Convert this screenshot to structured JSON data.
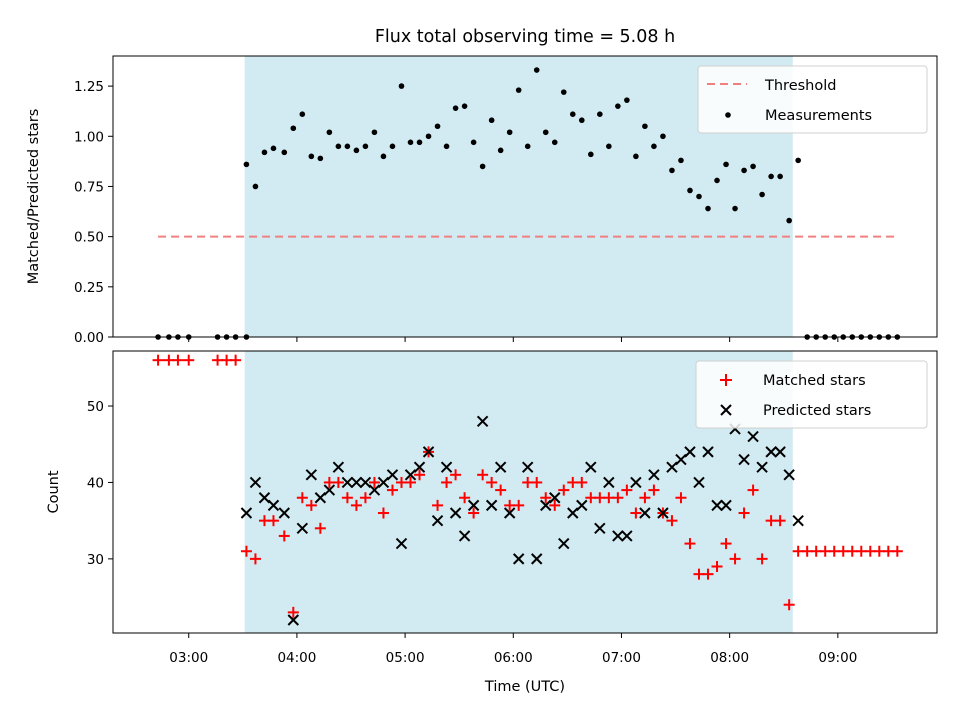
{
  "chart_data": [
    {
      "type": "scatter",
      "title": "Flux total observing time = 5.08 h",
      "xlabel": "",
      "ylabel": "Matched/Predicted stars",
      "ylim": [
        0,
        1.4
      ],
      "yticks": [
        "0.00",
        "0.25",
        "0.50",
        "0.75",
        "1.00",
        "1.25"
      ],
      "ytick_values": [
        0,
        0.25,
        0.5,
        0.75,
        1.0,
        1.25
      ],
      "shaded_span": {
        "start": "03:31",
        "end": "08:35",
        "color": "#add8e6"
      },
      "threshold": {
        "name": "Threshold",
        "value": 0.5,
        "x_start": "02:43",
        "x_end": "09:32",
        "color": "#f08080"
      },
      "legend": [
        "Threshold",
        "Measurements"
      ],
      "legend_position": "top-right",
      "series": [
        {
          "name": "Measurements",
          "color": "#000000",
          "points": [
            [
              "02:43",
              0.0
            ],
            [
              "02:49",
              0.0
            ],
            [
              "02:54",
              0.0
            ],
            [
              "03:00",
              0.0
            ],
            [
              "03:16",
              0.0
            ],
            [
              "03:21",
              0.0
            ],
            [
              "03:26",
              0.0
            ],
            [
              "03:32",
              0.0
            ],
            [
              "03:32",
              0.86
            ],
            [
              "03:37",
              0.75
            ],
            [
              "03:42",
              0.92
            ],
            [
              "03:47",
              0.94
            ],
            [
              "03:53",
              0.92
            ],
            [
              "03:58",
              1.04
            ],
            [
              "04:03",
              1.11
            ],
            [
              "04:08",
              0.9
            ],
            [
              "04:13",
              0.89
            ],
            [
              "04:18",
              1.02
            ],
            [
              "04:23",
              0.95
            ],
            [
              "04:28",
              0.95
            ],
            [
              "04:33",
              0.93
            ],
            [
              "04:38",
              0.95
            ],
            [
              "04:43",
              1.02
            ],
            [
              "04:48",
              0.9
            ],
            [
              "04:53",
              0.95
            ],
            [
              "04:58",
              1.25
            ],
            [
              "05:03",
              0.97
            ],
            [
              "05:08",
              0.97
            ],
            [
              "05:13",
              1.0
            ],
            [
              "05:18",
              1.05
            ],
            [
              "05:23",
              0.95
            ],
            [
              "05:28",
              1.14
            ],
            [
              "05:33",
              1.15
            ],
            [
              "05:38",
              0.97
            ],
            [
              "05:43",
              0.85
            ],
            [
              "05:48",
              1.08
            ],
            [
              "05:53",
              0.93
            ],
            [
              "05:58",
              1.02
            ],
            [
              "06:03",
              1.23
            ],
            [
              "06:08",
              0.95
            ],
            [
              "06:13",
              1.33
            ],
            [
              "06:18",
              1.02
            ],
            [
              "06:23",
              0.97
            ],
            [
              "06:28",
              1.22
            ],
            [
              "06:33",
              1.11
            ],
            [
              "06:38",
              1.08
            ],
            [
              "06:43",
              0.91
            ],
            [
              "06:48",
              1.11
            ],
            [
              "06:53",
              0.95
            ],
            [
              "06:58",
              1.15
            ],
            [
              "07:03",
              1.18
            ],
            [
              "07:08",
              0.9
            ],
            [
              "07:13",
              1.05
            ],
            [
              "07:18",
              0.95
            ],
            [
              "07:23",
              1.0
            ],
            [
              "07:28",
              0.83
            ],
            [
              "07:33",
              0.88
            ],
            [
              "07:38",
              0.73
            ],
            [
              "07:43",
              0.7
            ],
            [
              "07:48",
              0.64
            ],
            [
              "07:53",
              0.78
            ],
            [
              "07:58",
              0.86
            ],
            [
              "08:03",
              0.64
            ],
            [
              "08:08",
              0.83
            ],
            [
              "08:13",
              0.85
            ],
            [
              "08:18",
              0.71
            ],
            [
              "08:23",
              0.8
            ],
            [
              "08:28",
              0.8
            ],
            [
              "08:33",
              0.58
            ],
            [
              "08:38",
              0.88
            ],
            [
              "08:43",
              0.0
            ],
            [
              "08:48",
              0.0
            ],
            [
              "08:53",
              0.0
            ],
            [
              "08:58",
              0.0
            ],
            [
              "09:03",
              0.0
            ],
            [
              "09:08",
              0.0
            ],
            [
              "09:13",
              0.0
            ],
            [
              "09:18",
              0.0
            ],
            [
              "09:23",
              0.0
            ],
            [
              "09:28",
              0.0
            ],
            [
              "09:33",
              0.0
            ]
          ]
        }
      ]
    },
    {
      "type": "scatter",
      "xlabel": "Time (UTC)",
      "ylabel": "Count",
      "ylim": [
        20.3,
        57.2
      ],
      "yticks": [
        "30",
        "40",
        "50"
      ],
      "ytick_values": [
        30,
        40,
        50
      ],
      "xticks": [
        "03:00",
        "04:00",
        "05:00",
        "06:00",
        "07:00",
        "08:00",
        "09:00"
      ],
      "xlim": [
        "02:18",
        "09:55"
      ],
      "shaded_span": {
        "start": "03:31",
        "end": "08:35",
        "color": "#add8e6"
      },
      "legend": [
        "Matched stars",
        "Predicted stars"
      ],
      "legend_position": "top-right",
      "series": [
        {
          "name": "Matched stars",
          "marker": "+",
          "color": "#ff0000",
          "points": [
            [
              "02:43",
              56
            ],
            [
              "02:49",
              56
            ],
            [
              "02:54",
              56
            ],
            [
              "03:00",
              56
            ],
            [
              "03:16",
              56
            ],
            [
              "03:21",
              56
            ],
            [
              "03:26",
              56
            ],
            [
              "03:32",
              31
            ],
            [
              "03:37",
              30
            ],
            [
              "03:42",
              35
            ],
            [
              "03:47",
              35
            ],
            [
              "03:53",
              33
            ],
            [
              "03:58",
              23
            ],
            [
              "04:03",
              38
            ],
            [
              "04:08",
              37
            ],
            [
              "04:13",
              34
            ],
            [
              "04:18",
              40
            ],
            [
              "04:23",
              40
            ],
            [
              "04:28",
              38
            ],
            [
              "04:33",
              37
            ],
            [
              "04:38",
              38
            ],
            [
              "04:43",
              40
            ],
            [
              "04:48",
              36
            ],
            [
              "04:53",
              39
            ],
            [
              "04:58",
              40
            ],
            [
              "05:03",
              40
            ],
            [
              "05:08",
              41
            ],
            [
              "05:13",
              44
            ],
            [
              "05:18",
              37
            ],
            [
              "05:23",
              40
            ],
            [
              "05:28",
              41
            ],
            [
              "05:33",
              38
            ],
            [
              "05:38",
              36
            ],
            [
              "05:43",
              41
            ],
            [
              "05:48",
              40
            ],
            [
              "05:53",
              39
            ],
            [
              "05:58",
              37
            ],
            [
              "06:03",
              37
            ],
            [
              "06:08",
              40
            ],
            [
              "06:13",
              40
            ],
            [
              "06:18",
              38
            ],
            [
              "06:23",
              37
            ],
            [
              "06:28",
              39
            ],
            [
              "06:33",
              40
            ],
            [
              "06:38",
              40
            ],
            [
              "06:43",
              38
            ],
            [
              "06:48",
              38
            ],
            [
              "06:53",
              38
            ],
            [
              "06:58",
              38
            ],
            [
              "07:03",
              39
            ],
            [
              "07:08",
              36
            ],
            [
              "07:13",
              38
            ],
            [
              "07:18",
              39
            ],
            [
              "07:23",
              36
            ],
            [
              "07:28",
              35
            ],
            [
              "07:33",
              38
            ],
            [
              "07:38",
              32
            ],
            [
              "07:43",
              28
            ],
            [
              "07:48",
              28
            ],
            [
              "07:53",
              29
            ],
            [
              "07:58",
              32
            ],
            [
              "08:03",
              30
            ],
            [
              "08:08",
              36
            ],
            [
              "08:13",
              39
            ],
            [
              "08:18",
              30
            ],
            [
              "08:23",
              35
            ],
            [
              "08:28",
              35
            ],
            [
              "08:33",
              24
            ],
            [
              "08:38",
              31
            ],
            [
              "08:43",
              31
            ],
            [
              "08:48",
              31
            ],
            [
              "08:53",
              31
            ],
            [
              "08:58",
              31
            ],
            [
              "09:03",
              31
            ],
            [
              "09:08",
              31
            ],
            [
              "09:13",
              31
            ],
            [
              "09:18",
              31
            ],
            [
              "09:23",
              31
            ],
            [
              "09:28",
              31
            ],
            [
              "09:33",
              31
            ]
          ]
        },
        {
          "name": "Predicted stars",
          "marker": "x",
          "color": "#000000",
          "points": [
            [
              "03:32",
              36
            ],
            [
              "03:37",
              40
            ],
            [
              "03:42",
              38
            ],
            [
              "03:47",
              37
            ],
            [
              "03:53",
              36
            ],
            [
              "03:58",
              22
            ],
            [
              "04:03",
              34
            ],
            [
              "04:08",
              41
            ],
            [
              "04:13",
              38
            ],
            [
              "04:18",
              39
            ],
            [
              "04:23",
              42
            ],
            [
              "04:28",
              40
            ],
            [
              "04:33",
              40
            ],
            [
              "04:38",
              40
            ],
            [
              "04:43",
              39
            ],
            [
              "04:48",
              40
            ],
            [
              "04:53",
              41
            ],
            [
              "04:58",
              32
            ],
            [
              "05:03",
              41
            ],
            [
              "05:08",
              42
            ],
            [
              "05:13",
              44
            ],
            [
              "05:18",
              35
            ],
            [
              "05:23",
              42
            ],
            [
              "05:28",
              36
            ],
            [
              "05:33",
              33
            ],
            [
              "05:38",
              37
            ],
            [
              "05:43",
              48
            ],
            [
              "05:48",
              37
            ],
            [
              "05:53",
              42
            ],
            [
              "05:58",
              36
            ],
            [
              "06:03",
              30
            ],
            [
              "06:08",
              42
            ],
            [
              "06:13",
              30
            ],
            [
              "06:18",
              37
            ],
            [
              "06:23",
              38
            ],
            [
              "06:28",
              32
            ],
            [
              "06:33",
              36
            ],
            [
              "06:38",
              37
            ],
            [
              "06:43",
              42
            ],
            [
              "06:48",
              34
            ],
            [
              "06:53",
              40
            ],
            [
              "06:58",
              33
            ],
            [
              "07:03",
              33
            ],
            [
              "07:08",
              40
            ],
            [
              "07:13",
              36
            ],
            [
              "07:18",
              41
            ],
            [
              "07:23",
              36
            ],
            [
              "07:28",
              42
            ],
            [
              "07:33",
              43
            ],
            [
              "07:38",
              44
            ],
            [
              "07:43",
              40
            ],
            [
              "07:48",
              44
            ],
            [
              "07:53",
              37
            ],
            [
              "07:58",
              37
            ],
            [
              "08:03",
              47
            ],
            [
              "08:08",
              43
            ],
            [
              "08:13",
              46
            ],
            [
              "08:18",
              42
            ],
            [
              "08:23",
              44
            ],
            [
              "08:28",
              44
            ],
            [
              "08:33",
              41
            ],
            [
              "08:38",
              35
            ]
          ]
        }
      ]
    }
  ]
}
